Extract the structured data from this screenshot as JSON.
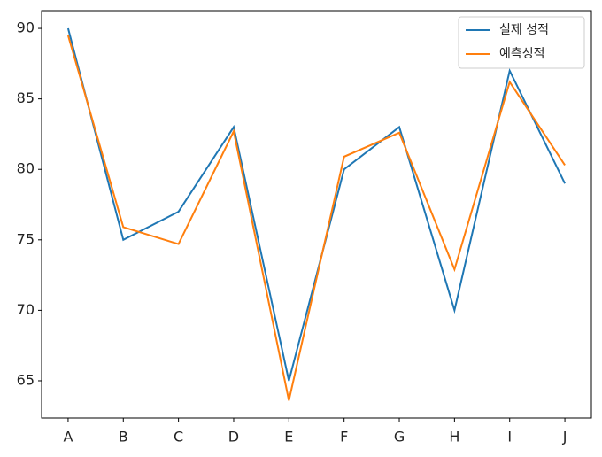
{
  "chart_data": {
    "type": "line",
    "categories": [
      "A",
      "B",
      "C",
      "D",
      "E",
      "F",
      "G",
      "H",
      "I",
      "J"
    ],
    "series": [
      {
        "name": "실제 성적",
        "color": "#1f77b4",
        "values": [
          90,
          75,
          77,
          83,
          65,
          80,
          83,
          70,
          87,
          79
        ]
      },
      {
        "name": "예측성적",
        "color": "#ff7f0e",
        "values": [
          89.5,
          75.9,
          74.7,
          82.7,
          63.6,
          80.9,
          82.6,
          72.9,
          86.2,
          80.3
        ]
      }
    ],
    "ylim": [
      62.36,
      91.26
    ],
    "yticks": [
      65,
      70,
      75,
      80,
      85,
      90
    ],
    "legend": "upper right"
  }
}
